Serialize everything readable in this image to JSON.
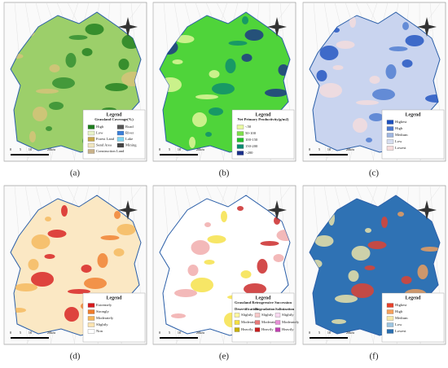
{
  "scale": [
    "0",
    "5",
    "10",
    "20",
    "km"
  ],
  "panels": [
    {
      "label": "(a)",
      "legend": {
        "title": "Legend",
        "subtitle": "Grassland Coverage(%)",
        "items": [
          {
            "name": "High",
            "color": "#1e7d1e"
          },
          {
            "name": "Low",
            "color": "#e8f2c8"
          },
          {
            "name": "Forest Land",
            "color": "#c8a84a"
          },
          {
            "name": "Sand Area",
            "color": "#f0e6c0"
          },
          {
            "name": "Construction Land",
            "color": "#c9b28a"
          },
          {
            "name": "Road",
            "color": "#555555"
          },
          {
            "name": "River",
            "color": "#3b7fd9"
          },
          {
            "name": "Lake",
            "color": "#7fd3f0"
          },
          {
            "name": "Mining",
            "color": "#444444"
          }
        ]
      }
    },
    {
      "label": "(b)",
      "legend": {
        "title": "Legend",
        "subtitle": "Net Primary Productivity(g/m2)",
        "items": [
          {
            "name": "<50",
            "color": "#e8f8a0"
          },
          {
            "name": "50-100",
            "color": "#7ee04a"
          },
          {
            "name": "100-150",
            "color": "#22c12a"
          },
          {
            "name": "150-200",
            "color": "#0a8a70"
          },
          {
            "name": ">200",
            "color": "#1a2f8a"
          }
        ]
      }
    },
    {
      "label": "(c)",
      "legend": {
        "title": "Legend",
        "items": [
          {
            "name": "Highest",
            "color": "#1b4fbf"
          },
          {
            "name": "High",
            "color": "#4a78d0"
          },
          {
            "name": "Medium",
            "color": "#9fb6e0"
          },
          {
            "name": "Low",
            "color": "#d7def0"
          },
          {
            "name": "Lowest",
            "color": "#f6dcdc"
          }
        ]
      }
    },
    {
      "label": "(d)",
      "legend": {
        "title": "Legend",
        "items": [
          {
            "name": "Extremely",
            "color": "#d7191c"
          },
          {
            "name": "Strongly",
            "color": "#f07c2a"
          },
          {
            "name": "Moderately",
            "color": "#f5b65a"
          },
          {
            "name": "Slightly",
            "color": "#fbe3b0"
          },
          {
            "name": "Non",
            "color": "#ffffff"
          }
        ]
      }
    },
    {
      "label": "(e)",
      "legend": {
        "title": "Legend",
        "subtitle": "Grassland Retrogressive Succession",
        "columns": [
          {
            "heading": "Desertification",
            "items": [
              {
                "name": "Slightly",
                "color": "#fff7a0"
              },
              {
                "name": "Moderately",
                "color": "#f5e040"
              },
              {
                "name": "Heavily",
                "color": "#c8b000"
              }
            ]
          },
          {
            "heading": "Degradation",
            "items": [
              {
                "name": "Slightly",
                "color": "#f8c8c8"
              },
              {
                "name": "Moderately",
                "color": "#ea7a7a"
              },
              {
                "name": "Heavily",
                "color": "#c81e1e"
              }
            ]
          },
          {
            "heading": "Salinization",
            "items": [
              {
                "name": "Slightly",
                "color": "#f8d8f0"
              },
              {
                "name": "Moderately",
                "color": "#e890d8"
              },
              {
                "name": "Heavily",
                "color": "#c040b0"
              }
            ]
          }
        ]
      }
    },
    {
      "label": "(f)",
      "legend": {
        "title": "Legend",
        "items": [
          {
            "name": "Highest",
            "color": "#e8402a"
          },
          {
            "name": "High",
            "color": "#f5a05a"
          },
          {
            "name": "Medium",
            "color": "#f5e8a8"
          },
          {
            "name": "Low",
            "color": "#9cc4e0"
          },
          {
            "name": "Lowest",
            "color": "#2a6fb0"
          }
        ]
      }
    }
  ]
}
